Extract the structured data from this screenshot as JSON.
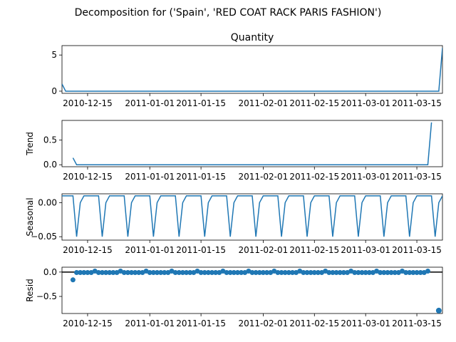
{
  "figure": {
    "suptitle": "Decomposition for ('Spain', 'RED COAT RACK PARIS FASHION')"
  },
  "colors": {
    "series": "#1f77b4",
    "axis": "#000000",
    "zero_line": "#000000"
  },
  "chart_data": [
    {
      "id": "observed",
      "type": "line",
      "title": "Quantity",
      "ylabel": "",
      "x_start": "2010-12-08",
      "x_end": "2011-03-22",
      "xlim": [
        "2010-12-08",
        "2011-03-22"
      ],
      "ylim": [
        -0.3,
        6.3
      ],
      "yticks": [
        0,
        5
      ],
      "ytick_labels": [
        "0",
        "5"
      ],
      "xtick_labels": [
        "2010-12-15",
        "2011-01-01",
        "2011-01-15",
        "2011-02-01",
        "2011-02-15",
        "2011-03-01",
        "2011-03-15"
      ],
      "series": [
        {
          "values_note": "",
          "points": [
            [
              "2010-12-08",
              1.0
            ],
            [
              "2010-12-09",
              0.0
            ],
            [
              "2011-03-21",
              0.0
            ],
            [
              "2011-03-22",
              6.0
            ]
          ]
        }
      ]
    },
    {
      "id": "trend",
      "type": "line",
      "title": "",
      "ylabel": "Trend",
      "xlim": [
        "2010-12-08",
        "2011-03-22"
      ],
      "ylim": [
        -0.04,
        0.9
      ],
      "yticks": [
        0,
        0.5
      ],
      "ytick_labels": [
        "0.0",
        "0.5"
      ],
      "xtick_labels": [
        "2010-12-15",
        "2011-01-01",
        "2011-01-15",
        "2011-02-01",
        "2011-02-15",
        "2011-03-01",
        "2011-03-15"
      ],
      "series": [
        {
          "points": [
            [
              "2010-12-11",
              0.14
            ],
            [
              "2010-12-12",
              0.0
            ],
            [
              "2011-03-18",
              0.0
            ],
            [
              "2011-03-19",
              0.86
            ]
          ]
        }
      ]
    },
    {
      "id": "seasonal",
      "type": "line",
      "title": "",
      "ylabel": "Seasonal",
      "xlim": [
        "2010-12-08",
        "2011-03-22"
      ],
      "ylim": [
        -0.055,
        0.013
      ],
      "yticks": [
        0.0,
        -0.05
      ],
      "ytick_labels": [
        "0.00",
        "−0.05"
      ],
      "xtick_labels": [
        "2010-12-15",
        "2011-01-01",
        "2011-01-15",
        "2011-02-01",
        "2011-02-15",
        "2011-03-01",
        "2011-03-15"
      ],
      "period_days": 7,
      "pattern": [
        0.01,
        0.01,
        0.01,
        0.01,
        -0.05,
        0.0,
        0.01
      ],
      "series": [
        {
          "pattern_start": "2010-12-08"
        }
      ]
    },
    {
      "id": "resid",
      "type": "scatter",
      "title": "",
      "ylabel": "Resid",
      "xlim": [
        "2010-12-08",
        "2011-03-22"
      ],
      "ylim": [
        -0.85,
        0.1
      ],
      "yticks": [
        0.0,
        -0.5
      ],
      "ytick_labels": [
        "0.0",
        "−0.5"
      ],
      "xtick_labels": [
        "2010-12-15",
        "2011-01-01",
        "2011-01-15",
        "2011-02-01",
        "2011-02-15",
        "2011-03-01",
        "2011-03-15"
      ],
      "zero_line": true,
      "series": [
        {
          "start": "2010-12-11",
          "end": "2011-03-18",
          "base_value": -0.01,
          "spike_every_days": 7,
          "spike_value": 0.02,
          "first_value": -0.16,
          "outlier": [
            "2011-03-21",
            -0.79
          ]
        }
      ]
    }
  ]
}
